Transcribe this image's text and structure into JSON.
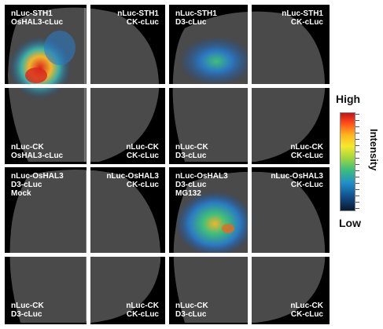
{
  "panels": [
    {
      "top_left_label": [
        "nLuc-STH1",
        "OsHAL3-cLuc"
      ],
      "top_right_label": [
        "nLuc-STH1",
        "CK-cLuc"
      ],
      "bottom_left_label": [
        "nLuc-CK",
        "OsHAL3-cLuc"
      ],
      "bottom_right_label": [
        "nLuc-CK",
        "CK-cLuc"
      ]
    },
    {
      "top_left_label": [
        "nLuc-STH1",
        "D3-cLuc"
      ],
      "top_right_label": [
        "nLuc-STH1",
        "CK-cLuc"
      ],
      "bottom_left_label": [
        "nLuc-CK",
        "D3-cLuc"
      ],
      "bottom_right_label": [
        "nLuc-CK",
        "CK-cLuc"
      ]
    },
    {
      "top_left_label": [
        "nLuc-OsHAL3",
        "D3-cLuc",
        "Mock"
      ],
      "top_right_label": [
        "nLuc-OsHAL3",
        "CK-cLuc"
      ],
      "bottom_left_label": [
        "nLuc-CK",
        "D3-cLuc"
      ],
      "bottom_right_label": [
        "nLuc-CK",
        "CK-cLuc"
      ]
    },
    {
      "top_left_label": [
        "nLuc-OsHAL3",
        "D3-cLuc",
        "MG132"
      ],
      "top_right_label": [
        "nLuc-OsHAL3",
        "CK-cLuc"
      ],
      "bottom_left_label": [
        "nLuc-CK",
        "D3-cLuc"
      ],
      "bottom_right_label": [
        "nLuc-CK",
        "CK-cLuc"
      ]
    }
  ],
  "legend": {
    "high": "High",
    "low": "Low",
    "title": "Intensity",
    "colors": [
      "#c0141a",
      "#ffb21e",
      "#f5e92a",
      "#3fbf7a",
      "#1f8fc7",
      "#0a1a2e"
    ]
  },
  "colors": {
    "background": "#000000",
    "divider": "#ffffff",
    "leaf": "#5a5a5a",
    "text": "#ffffff"
  }
}
